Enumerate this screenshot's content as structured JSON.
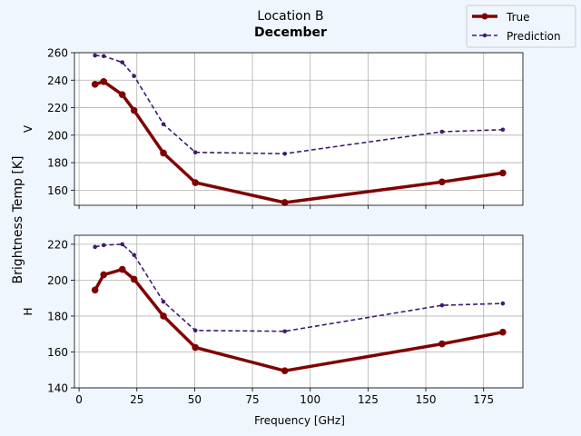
{
  "figure": {
    "title": "Location B",
    "subtitle": "December",
    "ylabel": "Brightness Temp [K]",
    "xlabel": "Frequency [GHz]",
    "background": "#f0f6fe"
  },
  "legend": {
    "placement": "top-right",
    "entries": [
      {
        "label": "True",
        "color": "#800000",
        "style": "solid"
      },
      {
        "label": "Prediction",
        "color": "#3f1c6e",
        "style": "dashed"
      }
    ]
  },
  "chart_data": [
    {
      "type": "line",
      "panel_label": "V",
      "x": [
        6.9,
        10.65,
        18.7,
        23.8,
        36.5,
        50.3,
        89.0,
        157.0,
        183.31
      ],
      "xlim": [
        -2,
        192
      ],
      "xticks": [
        "0",
        "25",
        "50",
        "75",
        "100",
        "125",
        "150",
        "175"
      ],
      "xtick_values": [
        0,
        25,
        50,
        75,
        100,
        125,
        150,
        175
      ],
      "ylim": [
        149,
        260
      ],
      "yticks": [
        "160",
        "180",
        "200",
        "220",
        "240",
        "260"
      ],
      "ytick_values": [
        160,
        180,
        200,
        220,
        240,
        260
      ],
      "grid": true,
      "series": [
        {
          "name": "True",
          "color": "#800000",
          "style": "solid",
          "values": [
            237,
            239,
            229.5,
            218,
            187,
            165.5,
            151,
            166,
            172.5
          ]
        },
        {
          "name": "Prediction",
          "color": "#3f1c6e",
          "style": "dashed",
          "values": [
            258,
            257.5,
            253,
            243,
            208,
            187.5,
            186.5,
            202.5,
            204
          ]
        }
      ]
    },
    {
      "type": "line",
      "panel_label": "H",
      "x": [
        6.9,
        10.65,
        18.7,
        23.8,
        36.5,
        50.3,
        89.0,
        157.0,
        183.31
      ],
      "xlim": [
        -2,
        192
      ],
      "xticks": [
        "0",
        "25",
        "50",
        "75",
        "100",
        "125",
        "150",
        "175"
      ],
      "xtick_values": [
        0,
        25,
        50,
        75,
        100,
        125,
        150,
        175
      ],
      "ylim": [
        140,
        225
      ],
      "yticks": [
        "140",
        "160",
        "180",
        "200",
        "220"
      ],
      "ytick_values": [
        140,
        160,
        180,
        200,
        220
      ],
      "grid": true,
      "series": [
        {
          "name": "True",
          "color": "#800000",
          "style": "solid",
          "values": [
            194.5,
            203,
            206,
            200.5,
            180,
            162.5,
            149.5,
            164.5,
            171
          ]
        },
        {
          "name": "Prediction",
          "color": "#3f1c6e",
          "style": "dashed",
          "values": [
            218.5,
            219.5,
            220,
            214,
            188,
            172,
            171.5,
            186,
            187
          ]
        }
      ]
    }
  ]
}
